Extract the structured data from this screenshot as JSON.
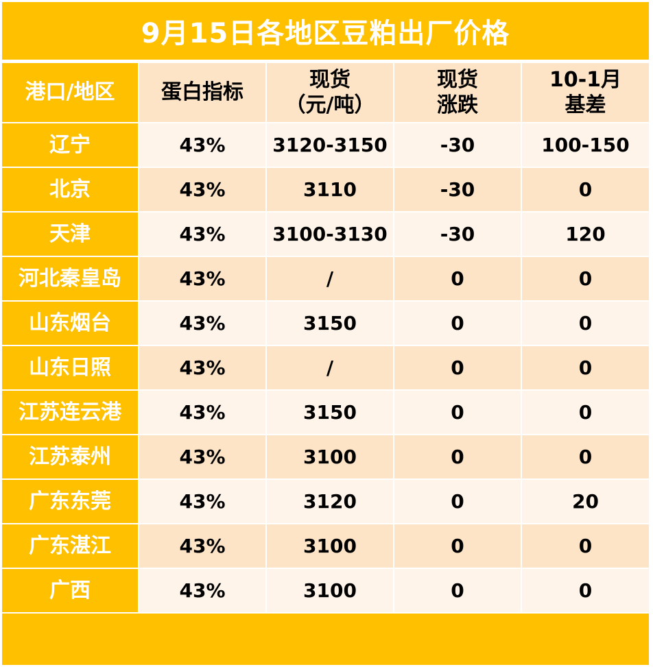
{
  "title": "9月15日各地区豆粕出厂价格",
  "headers": [
    "港口/地区",
    "蛋白指标",
    "现货\n（元/吨）",
    "现货\n涨跌",
    "10-1月\n基差"
  ],
  "rows": [
    {
      "region": "辽宁",
      "protein": "43%",
      "spot": "3120-3150",
      "change": "-30",
      "basis": "100-150"
    },
    {
      "region": "北京",
      "protein": "43%",
      "spot": "3110",
      "change": "-30",
      "basis": "0"
    },
    {
      "region": "天津",
      "protein": "43%",
      "spot": "3100-3130",
      "change": "-30",
      "basis": "120"
    },
    {
      "region": "河北秦皇岛",
      "protein": "43%",
      "spot": "/",
      "change": "0",
      "basis": "0"
    },
    {
      "region": "山东烟台",
      "protein": "43%",
      "spot": "3150",
      "change": "0",
      "basis": "0"
    },
    {
      "region": "山东日照",
      "protein": "43%",
      "spot": "/",
      "change": "0",
      "basis": "0"
    },
    {
      "region": "江苏连云港",
      "protein": "43%",
      "spot": "3150",
      "change": "0",
      "basis": "0"
    },
    {
      "region": "江苏泰州",
      "protein": "43%",
      "spot": "3100",
      "change": "0",
      "basis": "0"
    },
    {
      "region": "广东东莞",
      "protein": "43%",
      "spot": "3120",
      "change": "0",
      "basis": "20"
    },
    {
      "region": "广东湛江",
      "protein": "43%",
      "spot": "3100",
      "change": "0",
      "basis": "0"
    },
    {
      "region": "广西",
      "protein": "43%",
      "spot": "3100",
      "change": "0",
      "basis": "0"
    }
  ],
  "colors": {
    "accent": "#ffc000",
    "negative": "#ff0000",
    "row_light": "#fff4ea",
    "row_dark": "#fde4c6"
  }
}
